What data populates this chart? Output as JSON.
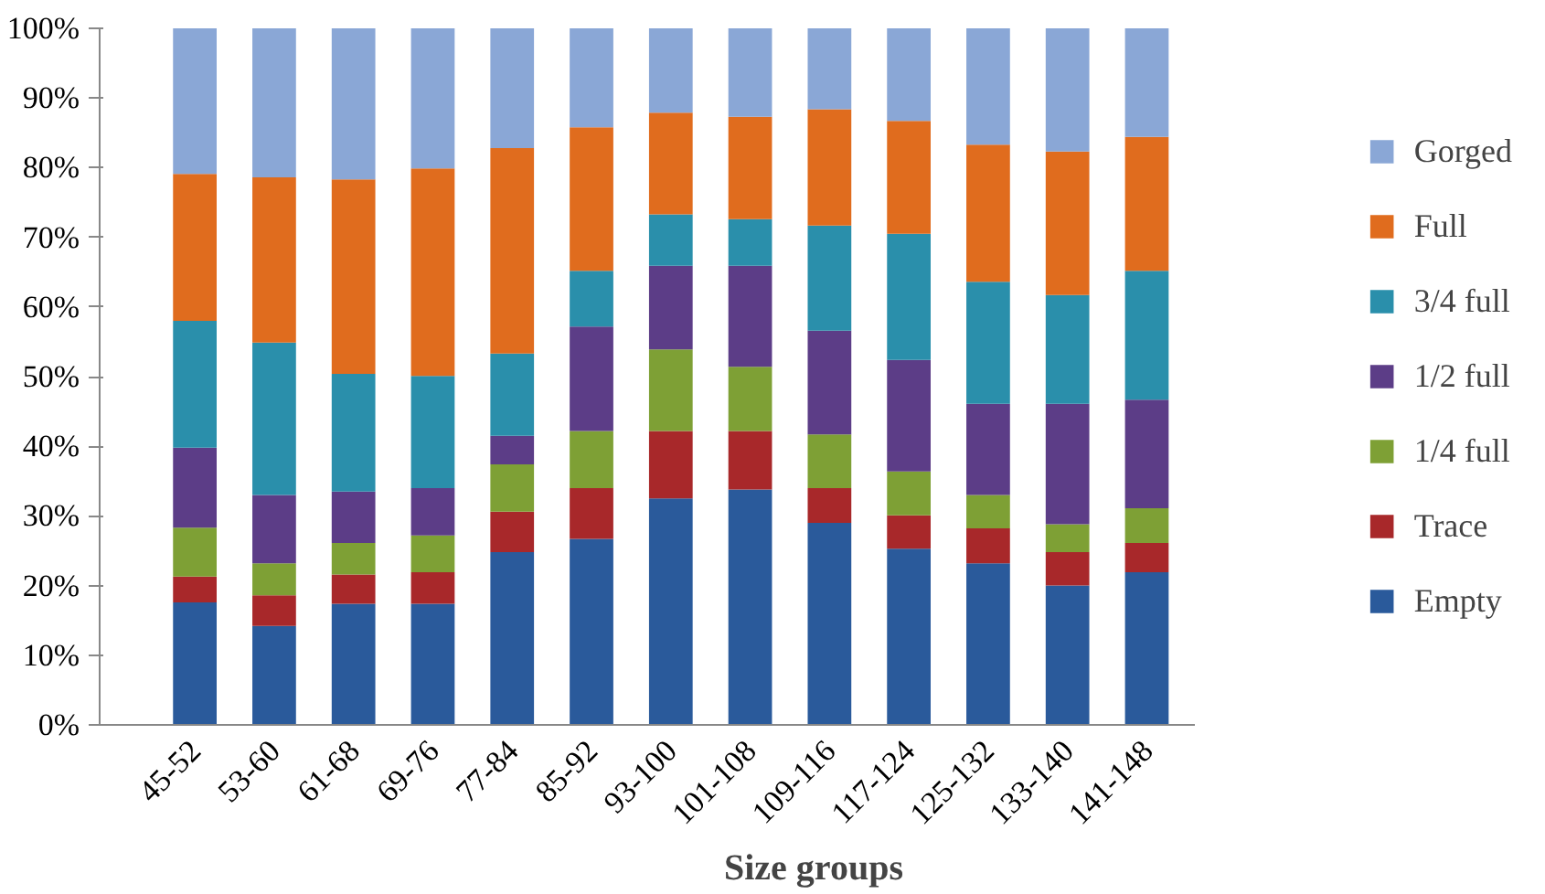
{
  "chart_data": {
    "type": "bar",
    "stacked": true,
    "xlabel": "Size groups",
    "categories": [
      "45-52",
      "53-60",
      "61-68",
      "69-76",
      "77-84",
      "85-92",
      "93-100",
      "101-108",
      "109-116",
      "117-124",
      "125-132",
      "133-140",
      "141-148"
    ],
    "series": [
      {
        "name": "Empty",
        "color": "#2a5a9b",
        "values": [
          17.6,
          14.2,
          17.4,
          17.4,
          24.8,
          26.7,
          32.5,
          33.8,
          29.0,
          25.3,
          23.2,
          20.0,
          21.9
        ]
      },
      {
        "name": "Trace",
        "color": "#a8282a",
        "values": [
          3.7,
          4.4,
          4.2,
          4.5,
          5.8,
          7.3,
          9.7,
          8.4,
          5.0,
          4.8,
          5.0,
          4.8,
          4.2
        ]
      },
      {
        "name": "1/4 full",
        "color": "#7ea035",
        "values": [
          7.0,
          4.6,
          4.5,
          5.3,
          6.8,
          8.2,
          11.7,
          9.2,
          7.7,
          6.3,
          4.8,
          4.0,
          5.0
        ]
      },
      {
        "name": "1/2 full",
        "color": "#5c3d87",
        "values": [
          11.5,
          9.8,
          7.4,
          6.8,
          4.1,
          15.0,
          12.0,
          14.5,
          14.9,
          16.0,
          13.1,
          17.3,
          15.6
        ]
      },
      {
        "name": "3/4 full",
        "color": "#2a8fab",
        "values": [
          18.2,
          21.9,
          16.9,
          16.1,
          11.8,
          8.0,
          7.4,
          6.7,
          15.1,
          18.1,
          17.5,
          15.6,
          18.5
        ]
      },
      {
        "name": "Full",
        "color": "#e06c1e",
        "values": [
          21.1,
          23.7,
          27.9,
          29.8,
          29.5,
          20.6,
          14.6,
          14.7,
          16.7,
          16.2,
          19.7,
          20.6,
          19.2
        ]
      },
      {
        "name": "Gorged",
        "color": "#8aa7d6",
        "values": [
          20.9,
          21.4,
          21.7,
          20.1,
          17.2,
          14.2,
          12.1,
          12.7,
          11.6,
          13.3,
          16.7,
          17.7,
          15.6
        ]
      }
    ],
    "ylim": [
      0,
      100
    ],
    "yticks": [
      {
        "value": 0,
        "label": "0%"
      },
      {
        "value": 10,
        "label": "10%"
      },
      {
        "value": 20,
        "label": "20%"
      },
      {
        "value": 30,
        "label": "30%"
      },
      {
        "value": 40,
        "label": "40%"
      },
      {
        "value": 50,
        "label": "50%"
      },
      {
        "value": 60,
        "label": "60%"
      },
      {
        "value": 70,
        "label": "70%"
      },
      {
        "value": 80,
        "label": "80%"
      },
      {
        "value": 90,
        "label": "90%"
      },
      {
        "value": 100,
        "label": "100%"
      }
    ],
    "grid": false,
    "legend": "right"
  }
}
